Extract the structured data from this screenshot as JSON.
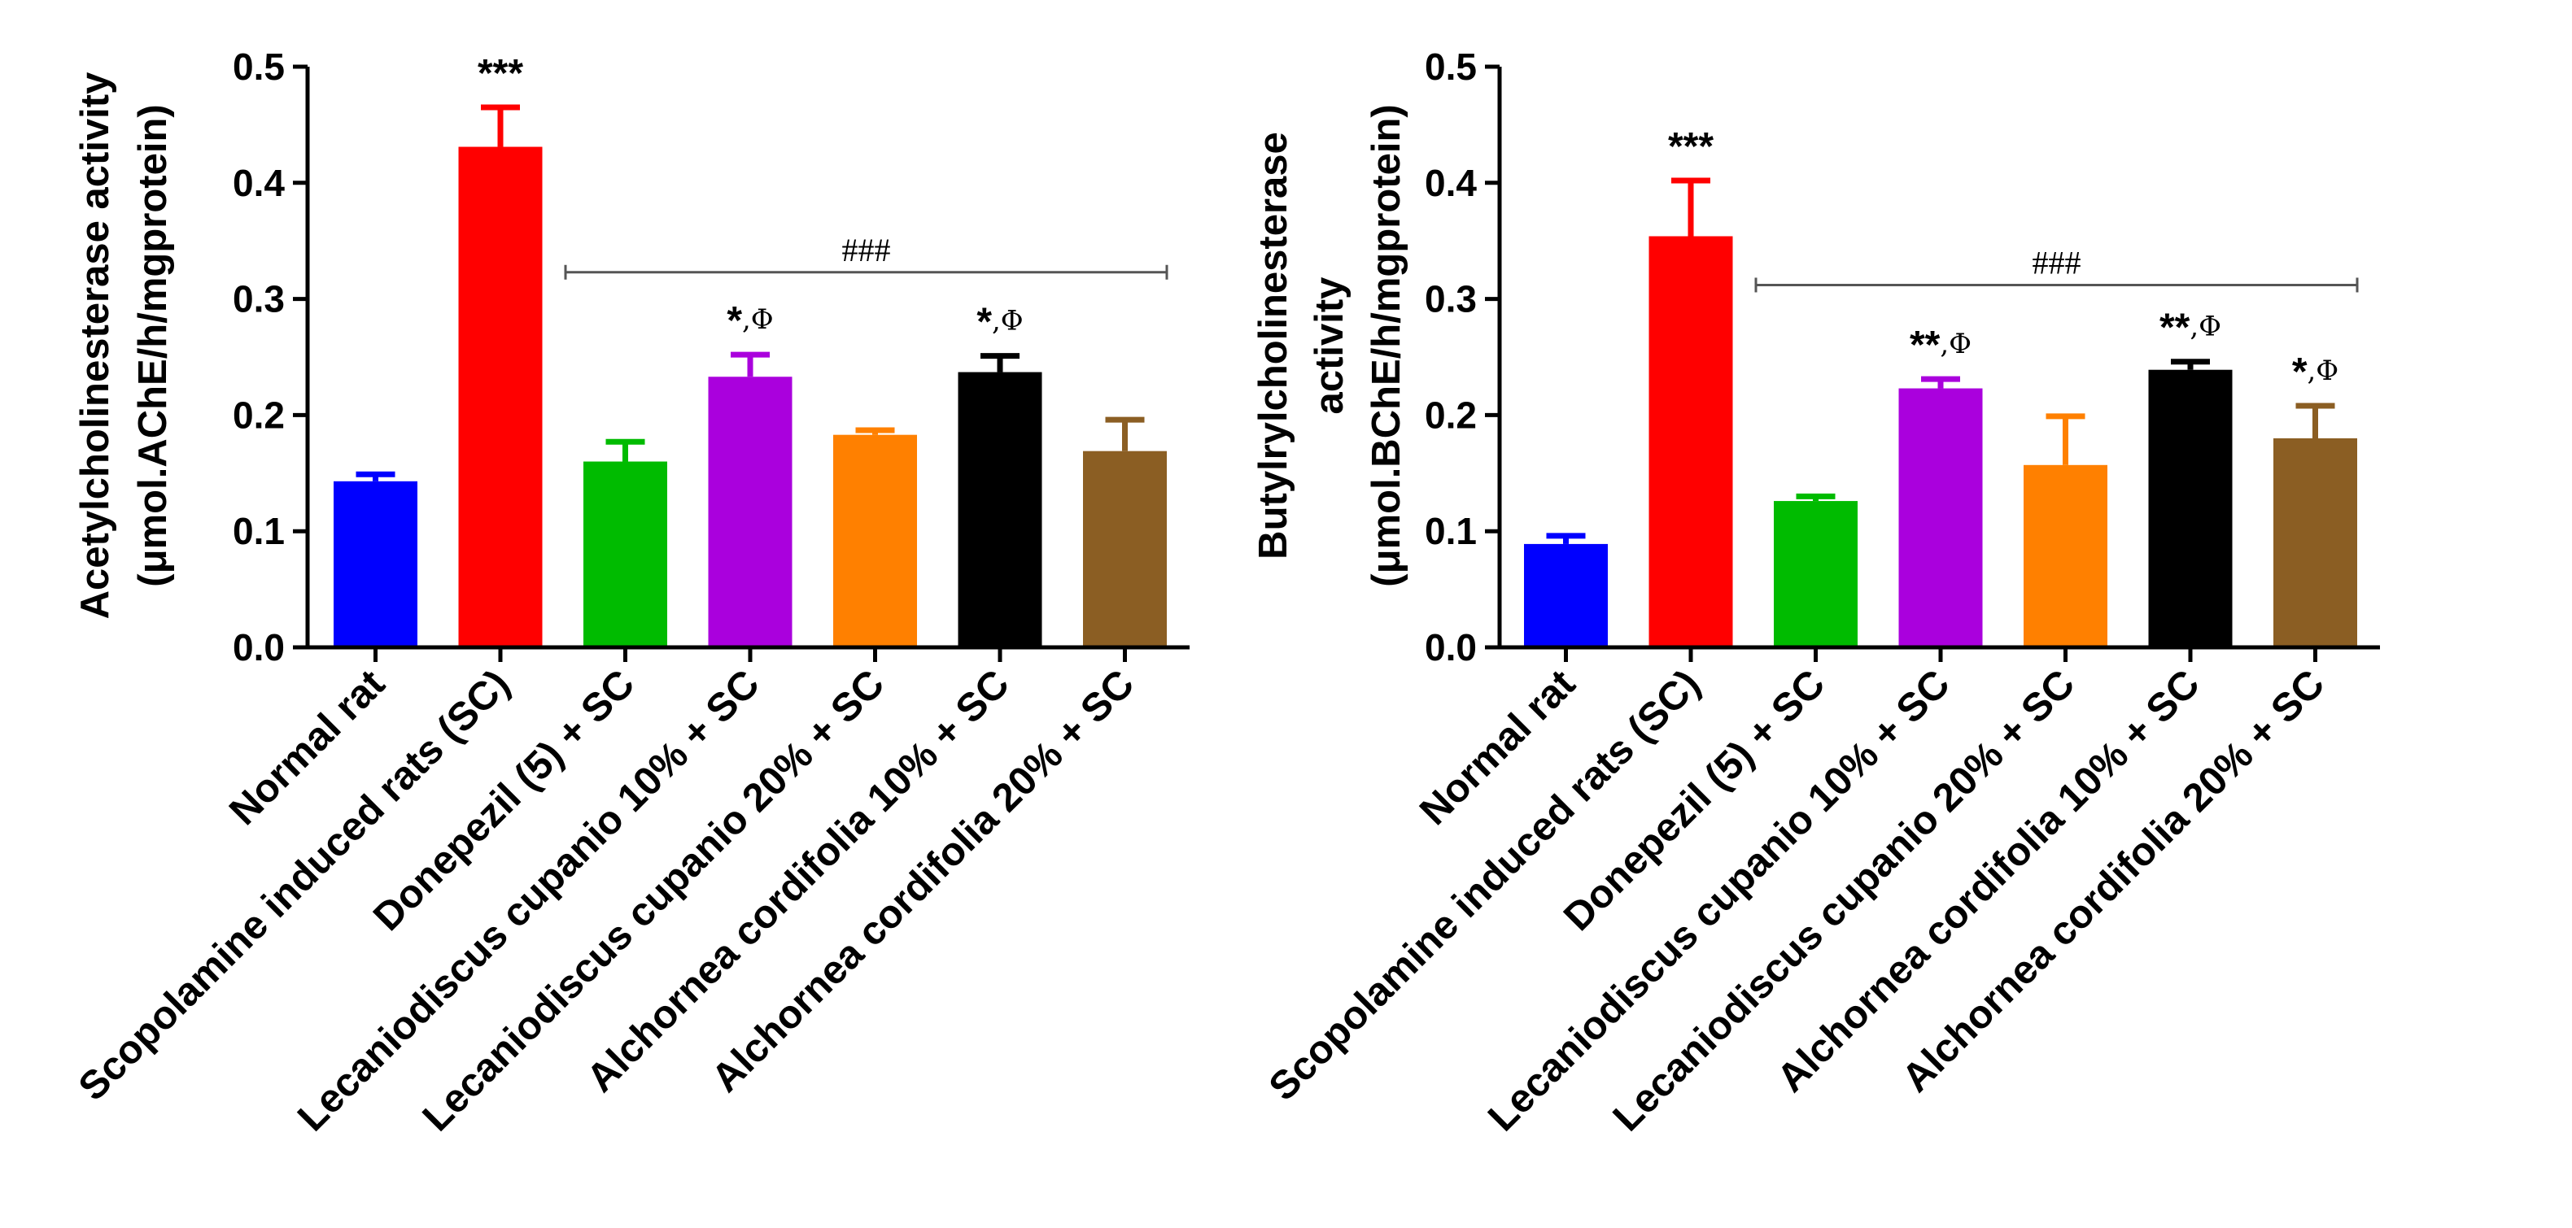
{
  "chart_data": [
    {
      "type": "bar",
      "ylabel_lines": [
        "Acetylcholinesterase activity",
        "(μmol.AChE/h/mgprotein)"
      ],
      "ylim": [
        0,
        0.5
      ],
      "yticks": [
        "0.0",
        "0.1",
        "0.2",
        "0.3",
        "0.4",
        "0.5"
      ],
      "ytick_values": [
        0,
        0.1,
        0.2,
        0.3,
        0.4,
        0.5
      ],
      "categories": [
        "Normal rat",
        "Scopolamine induced rats (SC)",
        "Donepezil (5) + SC",
        "Lecaniodiscus cupanio 10% + SC",
        "Lecaniodiscus cupanio 20% + SC",
        "Alchornea cordifolia 10% + SC",
        "Alchornea cordifolia 20% + SC"
      ],
      "values": [
        0.143,
        0.431,
        0.16,
        0.233,
        0.183,
        0.237,
        0.169
      ],
      "errors": [
        0.006,
        0.034,
        0.017,
        0.019,
        0.004,
        0.014,
        0.027
      ],
      "colors": [
        "#0000ff",
        "#ff0000",
        "#00bb00",
        "#aa00dd",
        "#ff8000",
        "#000000",
        "#8b5e23"
      ],
      "annotations": [
        {
          "bar": 1,
          "stars": "***",
          "suffix": ""
        },
        {
          "bar": 3,
          "stars": "*",
          "suffix": ",Φ"
        },
        {
          "bar": 5,
          "stars": "*",
          "suffix": ",Φ"
        }
      ],
      "bracket": {
        "from": 2,
        "to": 6,
        "y": 0.323,
        "label": "###"
      }
    },
    {
      "type": "bar",
      "ylabel_lines": [
        "Butylrylcholinesterase",
        "activity",
        "(μmol.BChE/h/mgprotein)"
      ],
      "ylim": [
        0,
        0.5
      ],
      "yticks": [
        "0.0",
        "0.1",
        "0.2",
        "0.3",
        "0.4",
        "0.5"
      ],
      "ytick_values": [
        0,
        0.1,
        0.2,
        0.3,
        0.4,
        0.5
      ],
      "categories": [
        "Normal rat",
        "Scopolamine induced rats (SC)",
        "Donepezil (5) + SC",
        "Lecaniodiscus cupanio 10% + SC",
        "Lecaniodiscus cupanio 20% + SC",
        "Alchornea cordifolia 10% + SC",
        "Alchornea cordifolia 20% + SC"
      ],
      "values": [
        0.089,
        0.354,
        0.126,
        0.223,
        0.157,
        0.239,
        0.18
      ],
      "errors": [
        0.007,
        0.048,
        0.004,
        0.008,
        0.042,
        0.007,
        0.028
      ],
      "colors": [
        "#0000ff",
        "#ff0000",
        "#00bb00",
        "#aa00dd",
        "#ff8000",
        "#000000",
        "#8b5e23"
      ],
      "annotations": [
        {
          "bar": 1,
          "stars": "***",
          "suffix": ""
        },
        {
          "bar": 3,
          "stars": "**",
          "suffix": ",Φ"
        },
        {
          "bar": 5,
          "stars": "**",
          "suffix": ",Φ"
        },
        {
          "bar": 6,
          "stars": "*",
          "suffix": ",Φ"
        }
      ],
      "bracket": {
        "from": 2,
        "to": 6,
        "y": 0.312,
        "label": "###"
      }
    }
  ]
}
